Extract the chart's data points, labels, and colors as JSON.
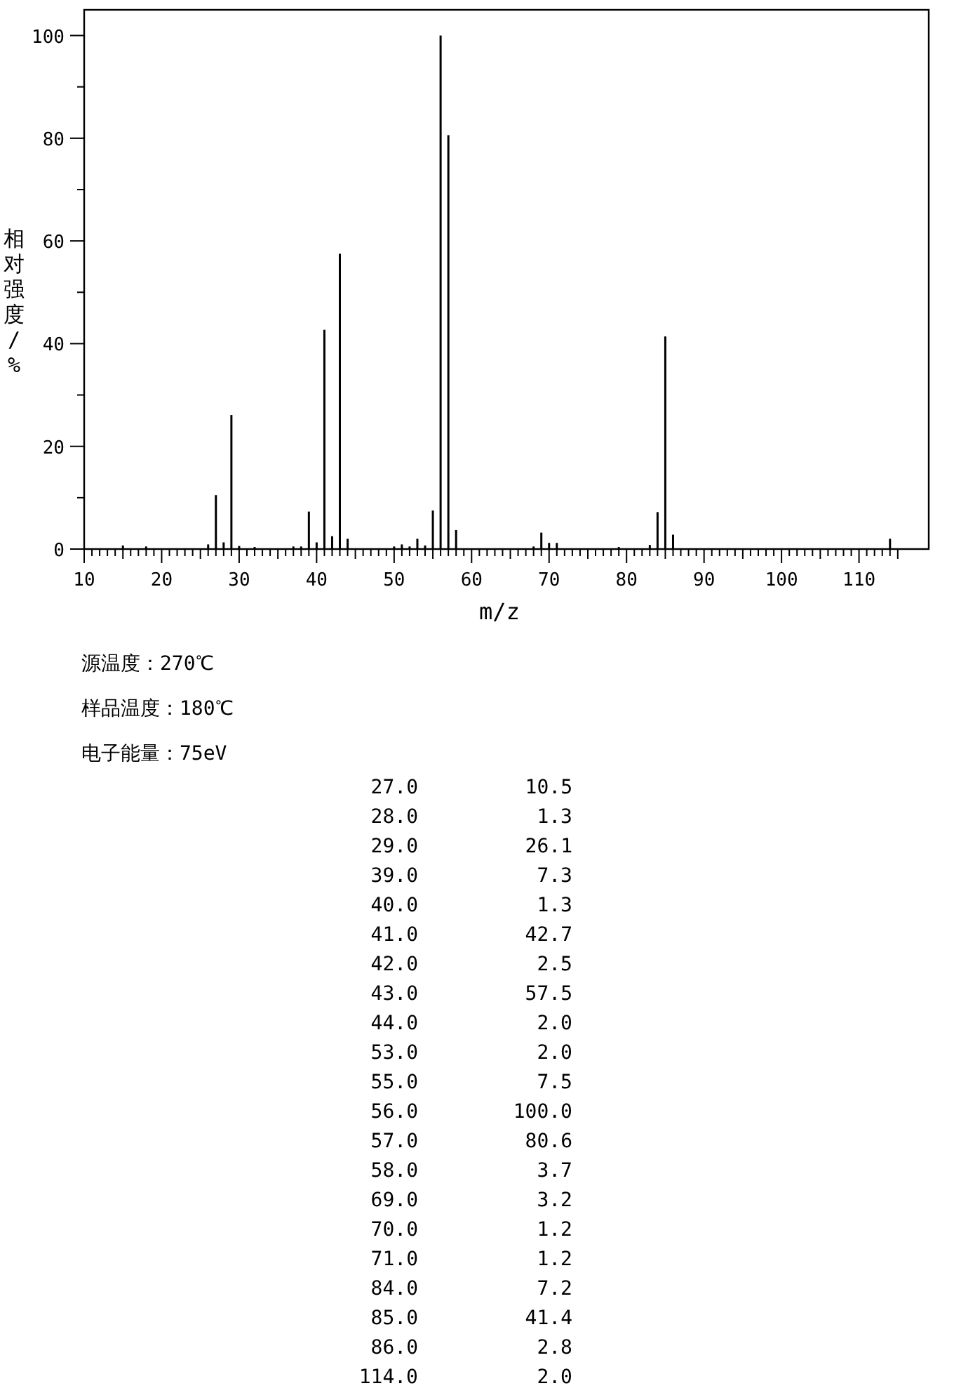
{
  "chart_data": {
    "type": "bar",
    "xlabel": "m/z",
    "ylabel": "相对强度/%",
    "color": "#000000",
    "x": [
      15,
      18,
      26,
      27,
      28,
      29,
      30,
      32,
      37,
      38,
      39,
      40,
      41,
      42,
      43,
      44,
      50,
      51,
      52,
      53,
      54,
      55,
      56,
      57,
      58,
      68,
      69,
      70,
      71,
      79,
      83,
      84,
      85,
      86,
      114
    ],
    "values": [
      0.7,
      0.5,
      0.9,
      10.5,
      1.3,
      26.1,
      0.6,
      0.4,
      0.5,
      0.5,
      7.3,
      1.3,
      42.7,
      2.5,
      57.5,
      2.0,
      0.5,
      0.9,
      0.5,
      2.0,
      0.7,
      7.5,
      100.0,
      80.6,
      3.7,
      0.5,
      3.2,
      1.2,
      1.2,
      0.4,
      0.8,
      7.2,
      41.4,
      2.8,
      2.0
    ],
    "xlim": [
      10,
      119
    ],
    "ylim": [
      0,
      105
    ],
    "xticks": [
      10,
      {
        "value": 11,
        "label": null
      },
      {
        "value": 12,
        "label": null
      },
      {
        "value": 13,
        "label": null
      },
      {
        "value": 14,
        "label": null
      },
      {
        "value": 15,
        "label": null
      },
      {
        "value": 16,
        "label": null
      },
      {
        "value": 17,
        "label": null
      },
      {
        "value": 18,
        "label": null
      },
      {
        "value": 19,
        "label": null
      },
      20,
      {
        "value": 21,
        "label": null
      },
      {
        "value": 22,
        "label": null
      },
      {
        "value": 23,
        "label": null
      },
      {
        "value": 24,
        "label": null
      },
      {
        "value": 25,
        "label": null
      },
      {
        "value": 26,
        "label": null
      },
      {
        "value": 27,
        "label": null
      },
      {
        "value": 28,
        "label": null
      },
      {
        "value": 29,
        "label": null
      },
      30,
      {
        "value": 31,
        "label": null
      },
      {
        "value": 32,
        "label": null
      },
      {
        "value": 33,
        "label": null
      },
      {
        "value": 34,
        "label": null
      },
      {
        "value": 35,
        "label": null
      },
      {
        "value": 36,
        "label": null
      },
      {
        "value": 37,
        "label": null
      },
      {
        "value": 38,
        "label": null
      },
      {
        "value": 39,
        "label": null
      },
      40,
      {
        "value": 41,
        "label": null
      },
      {
        "value": 42,
        "label": null
      },
      {
        "value": 43,
        "label": null
      },
      {
        "value": 44,
        "label": null
      },
      {
        "value": 45,
        "label": null
      },
      {
        "value": 46,
        "label": null
      },
      {
        "value": 47,
        "label": null
      },
      {
        "value": 48,
        "label": null
      },
      {
        "value": 49,
        "label": null
      },
      50,
      {
        "value": 51,
        "label": null
      },
      {
        "value": 52,
        "label": null
      },
      {
        "value": 53,
        "label": null
      },
      {
        "value": 54,
        "label": null
      },
      {
        "value": 55,
        "label": null
      },
      {
        "value": 56,
        "label": null
      },
      {
        "value": 57,
        "label": null
      },
      {
        "value": 58,
        "label": null
      },
      {
        "value": 59,
        "label": null
      },
      60,
      {
        "value": 61,
        "label": null
      },
      {
        "value": 62,
        "label": null
      },
      {
        "value": 63,
        "label": null
      },
      {
        "value": 64,
        "label": null
      },
      {
        "value": 65,
        "label": null
      },
      {
        "value": 66,
        "label": null
      },
      {
        "value": 67,
        "label": null
      },
      {
        "value": 68,
        "label": null
      },
      {
        "value": 69,
        "label": null
      },
      70,
      {
        "value": 71,
        "label": null
      },
      {
        "value": 72,
        "label": null
      },
      {
        "value": 73,
        "label": null
      },
      {
        "value": 74,
        "label": null
      },
      {
        "value": 75,
        "label": null
      },
      {
        "value": 76,
        "label": null
      },
      {
        "value": 77,
        "label": null
      },
      {
        "value": 78,
        "label": null
      },
      {
        "value": 79,
        "label": null
      },
      80,
      {
        "value": 81,
        "label": null
      },
      {
        "value": 82,
        "label": null
      },
      {
        "value": 83,
        "label": null
      },
      {
        "value": 84,
        "label": null
      },
      {
        "value": 85,
        "label": null
      },
      {
        "value": 86,
        "label": null
      },
      {
        "value": 87,
        "label": null
      },
      {
        "value": 88,
        "label": null
      },
      {
        "value": 89,
        "label": null
      },
      90,
      {
        "value": 91,
        "label": null
      },
      {
        "value": 92,
        "label": null
      },
      {
        "value": 93,
        "label": null
      },
      {
        "value": 94,
        "label": null
      },
      {
        "value": 95,
        "label": null
      },
      {
        "value": 96,
        "label": null
      },
      {
        "value": 97,
        "label": null
      },
      {
        "value": 98,
        "label": null
      },
      {
        "value": 99,
        "label": null
      },
      100,
      {
        "value": 101,
        "label": null
      },
      {
        "value": 102,
        "label": null
      },
      {
        "value": 103,
        "label": null
      },
      {
        "value": 104,
        "label": null
      },
      {
        "value": 105,
        "label": null
      },
      {
        "value": 106,
        "label": null
      },
      {
        "value": 107,
        "label": null
      },
      {
        "value": 108,
        "label": null
      },
      {
        "value": 109,
        "label": null
      },
      110,
      {
        "value": 111,
        "label": null
      },
      {
        "value": 112,
        "label": null
      },
      {
        "value": 113,
        "label": null
      },
      {
        "value": 114,
        "label": null
      },
      {
        "value": 115,
        "label": null
      }
    ],
    "yticks": [
      0,
      {
        "value": 10,
        "label": null
      },
      20,
      {
        "value": 30,
        "label": null
      },
      40,
      {
        "value": 50,
        "label": null
      },
      60,
      {
        "value": 70,
        "label": null
      },
      80,
      {
        "value": 90,
        "label": null
      },
      100
    ],
    "annotations": [
      "源温度：270℃",
      "样品温度：180℃",
      "电子能量：75eV",
      "27.0 10.5",
      "28.0 1.3",
      "29.0 26.1",
      "39.0 7.3",
      "40.0 1.3",
      "41.0 42.7",
      "42.0 2.5",
      "43.0 57.5",
      "44.0 2.0",
      "53.0 2.0",
      "55.0 7.5",
      "56.0 100.0",
      "57.0 80.6",
      "58.0 3.7",
      "69.0 3.2",
      "70.0 1.2",
      "71.0 1.2",
      "84.0 7.2",
      "85.0 41.4",
      "86.0 2.8",
      "114.0 2.0"
    ]
  }
}
